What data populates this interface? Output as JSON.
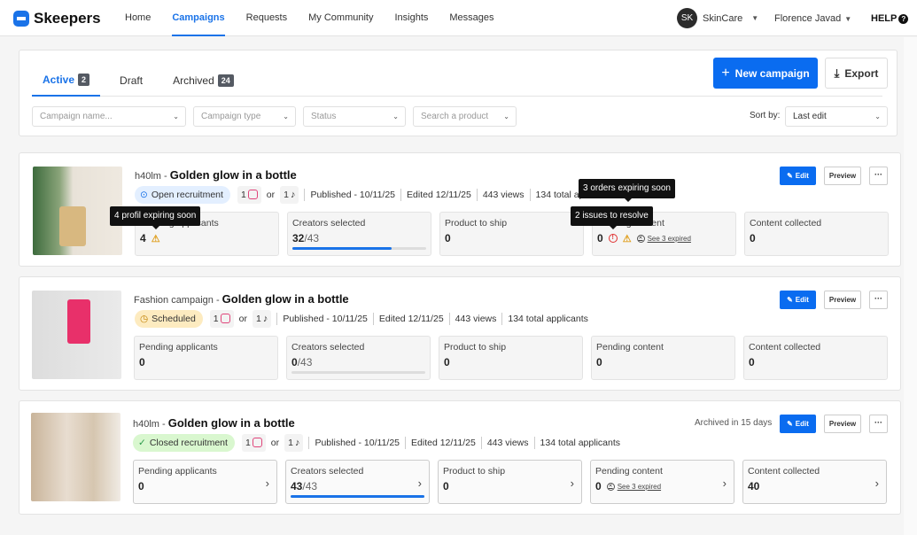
{
  "header": {
    "brand": "Skeepers",
    "nav": [
      "Home",
      "Campaigns",
      "Requests",
      "My Community",
      "Insights",
      "Messages"
    ],
    "active_nav": "Campaigns",
    "account_initials": "SK",
    "account": "SkinCare",
    "user": "Florence Javad",
    "help": "HELP",
    "help_icon": "?"
  },
  "toolbar": {
    "tabs": [
      {
        "label": "Active",
        "count": "2"
      },
      {
        "label": "Draft",
        "count": ""
      },
      {
        "label": "Archived",
        "count": "24"
      }
    ],
    "new_campaign": "New campaign",
    "export": "Export",
    "filters": {
      "campaign_name": "Campaign name...",
      "campaign_type": "Campaign type",
      "status": "Status",
      "product": "Search a product"
    },
    "sort_label": "Sort by:",
    "sort_value": "Last edit"
  },
  "colors": {
    "accent": "#0a6cf0",
    "open": "#e3efff",
    "scheduled": "#fdebc0",
    "closed": "#d9f7cf"
  },
  "campaigns": [
    {
      "brand": "h40lm",
      "sep": " - ",
      "title": "Golden glow in a bottle",
      "status": "Open recruitment",
      "ig": "1",
      "or": "or",
      "tt": "1",
      "published": "Published - 10/11/25",
      "edited": "Edited 12/11/25",
      "views": "443 views",
      "applicants": "134 total ap",
      "edit": "Edit",
      "preview": "Preview",
      "more": "···",
      "stats": [
        {
          "label": "Pending applicants",
          "value": "4"
        },
        {
          "label": "Creators selected",
          "value": "32",
          "total": "/43",
          "progress": 0.74
        },
        {
          "label": "Product to ship",
          "value": "0"
        },
        {
          "label": "Pending content",
          "value": "0",
          "expired": "See 3 expired"
        },
        {
          "label": "Content collected",
          "value": "0"
        }
      ],
      "tooltips": [
        "4 profil expiring soon",
        "3 orders expiring soon",
        "2 issues to resolve"
      ]
    },
    {
      "brand": "Fashion campaign",
      "sep": " - ",
      "title": "Golden glow in a bottle",
      "status": "Scheduled",
      "ig": "1",
      "or": "or",
      "tt": "1",
      "published": "Published - 10/11/25",
      "edited": "Edited 12/11/25",
      "views": "443 views",
      "applicants": "134 total applicants",
      "edit": "Edit",
      "preview": "Preview",
      "more": "···",
      "stats": [
        {
          "label": "Pending applicants",
          "value": "0"
        },
        {
          "label": "Creators selected",
          "value": "0",
          "total": "/43",
          "progress": 0
        },
        {
          "label": "Product to ship",
          "value": "0"
        },
        {
          "label": "Pending content",
          "value": "0"
        },
        {
          "label": "Content collected",
          "value": "0"
        }
      ]
    },
    {
      "brand": "h40lm",
      "sep": " - ",
      "title": "Golden glow in a bottle",
      "status": "Closed recruitment",
      "ig": "1",
      "or": "or",
      "tt": "1",
      "published": "Published - 10/11/25",
      "edited": "Edited 12/11/25",
      "views": "443 views",
      "applicants": "134 total applicants",
      "archived": "Archived in 15 days",
      "edit": "Edit",
      "preview": "Preview",
      "more": "···",
      "stats": [
        {
          "label": "Pending applicants",
          "value": "0"
        },
        {
          "label": "Creators selected",
          "value": "43",
          "total": "/43",
          "progress": 1
        },
        {
          "label": "Product to ship",
          "value": "0"
        },
        {
          "label": "Pending content",
          "value": "0",
          "expired": "See 3 expired"
        },
        {
          "label": "Content collected",
          "value": "40"
        }
      ]
    }
  ]
}
